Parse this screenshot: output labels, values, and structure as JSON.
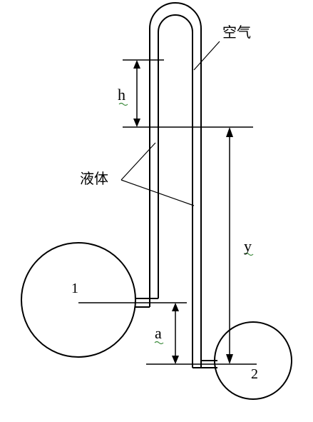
{
  "labels": {
    "air": "空气",
    "liquid": "液体",
    "h": "h",
    "y": "y",
    "a": "a",
    "vessel_1": "1",
    "vessel_2": "2"
  },
  "colors": {
    "stroke": "#000000",
    "background": "#ffffff",
    "squiggle": "#3a8a3a"
  }
}
